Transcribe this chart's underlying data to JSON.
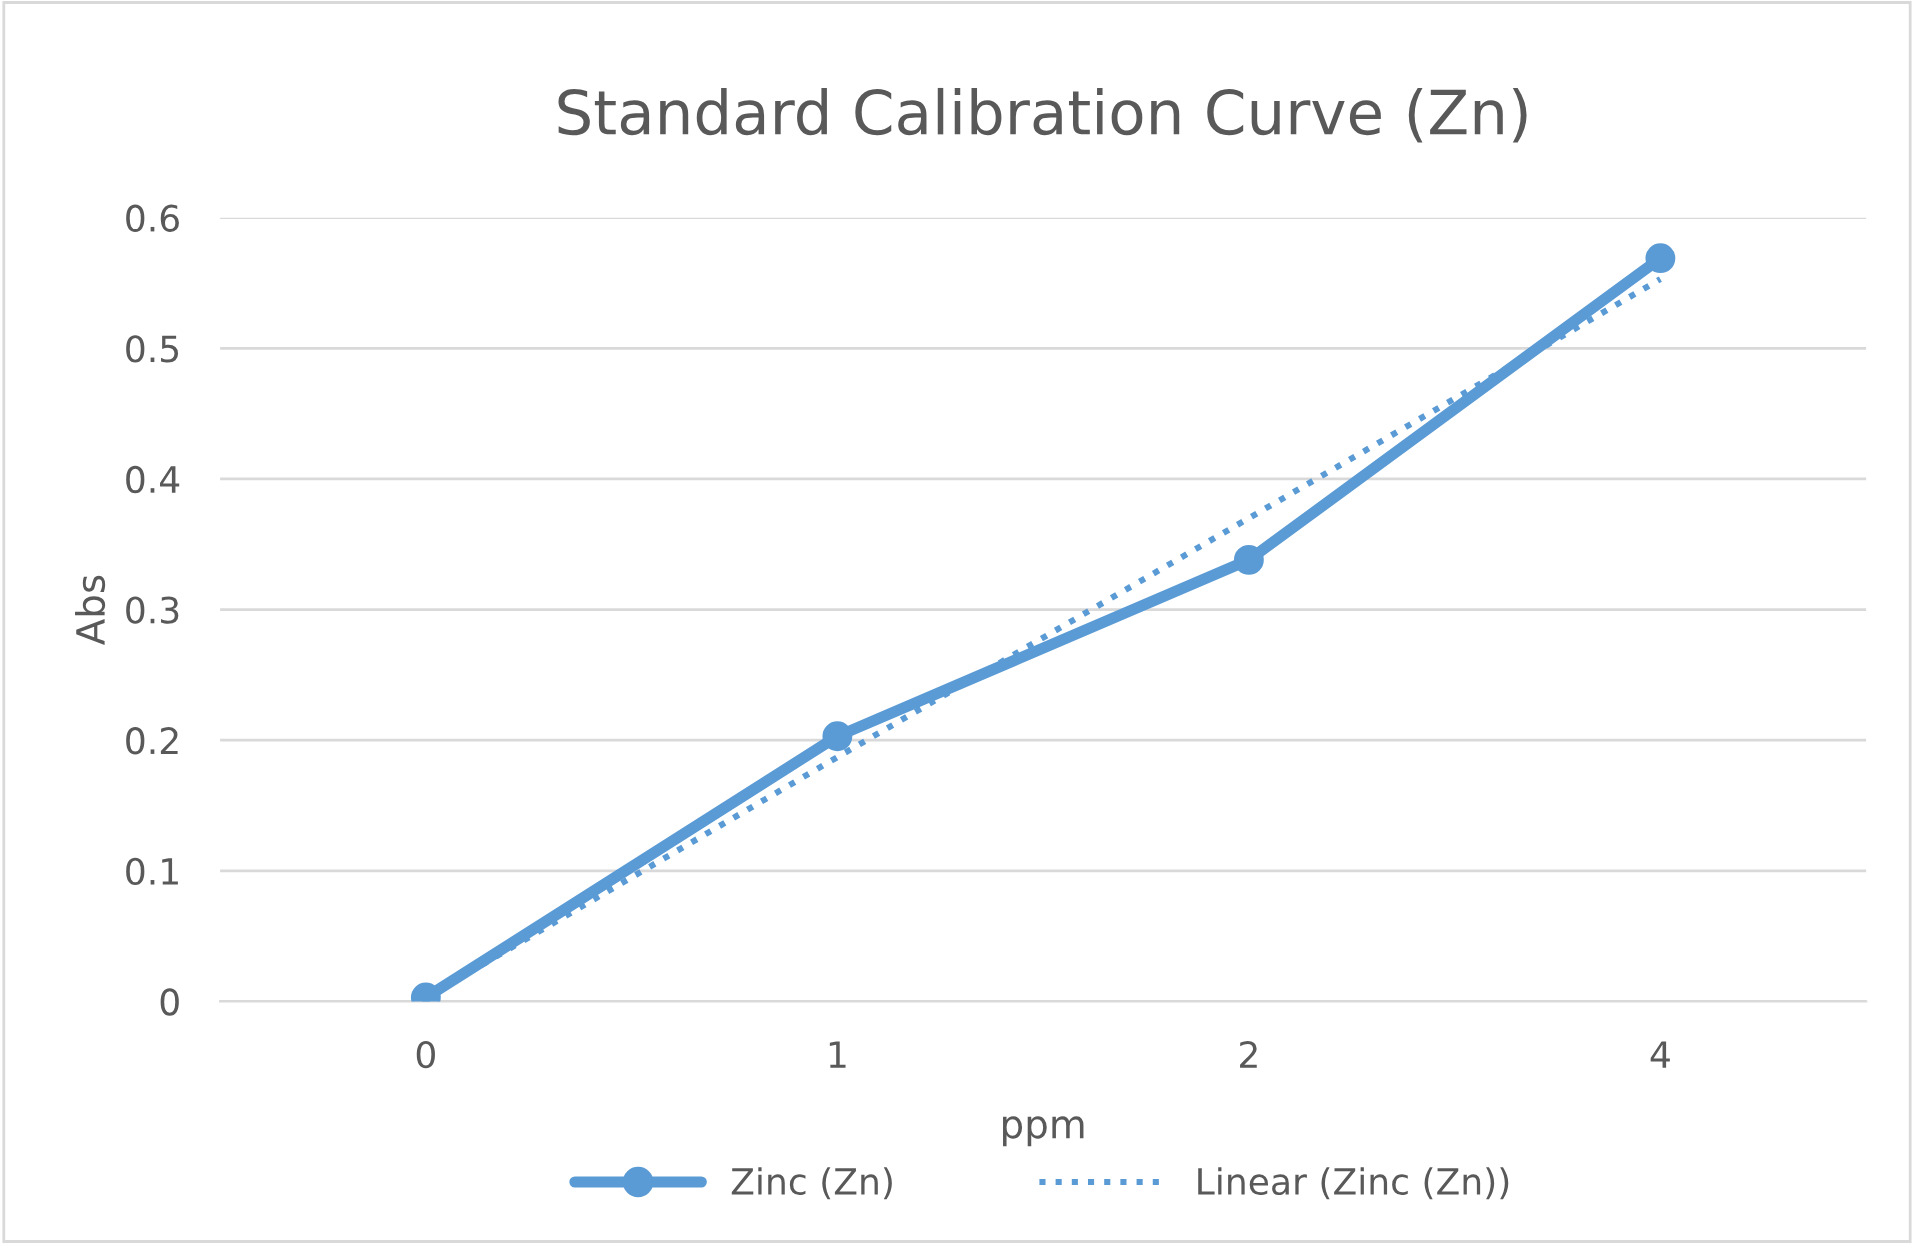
{
  "chart_data": {
    "type": "line",
    "title": "Standard Calibration Curve (Zn)",
    "xlabel": "ppm",
    "ylabel": "Abs",
    "categories": [
      "0",
      "1",
      "2",
      "4"
    ],
    "series": [
      {
        "name": "Zinc (Zn)",
        "color": "#5b9bd5",
        "values": [
          0.003,
          0.203,
          0.338,
          0.569
        ],
        "marker": "circle",
        "line_style": "solid"
      },
      {
        "name": "Linear (Zinc (Zn))",
        "color": "#5b9bd5",
        "values": [
          0.003,
          0.187,
          0.37,
          0.553
        ],
        "marker": "none",
        "line_style": "dotted"
      }
    ],
    "ylim": [
      0,
      0.6
    ],
    "yticks": [
      0,
      0.1,
      0.2,
      0.3,
      0.4,
      0.5,
      0.6
    ],
    "grid": "y",
    "legend": "bottom"
  }
}
